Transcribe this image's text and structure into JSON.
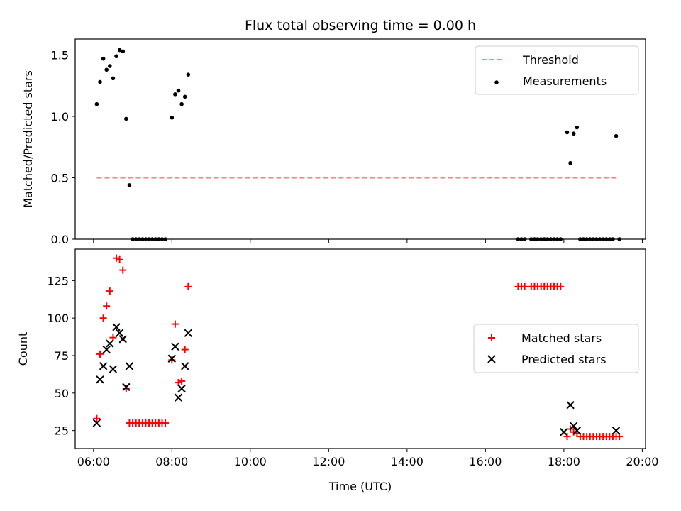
{
  "chart_data": [
    {
      "type": "scatter",
      "title": "Flux total observing time = 0.00 h",
      "xlabel": "",
      "ylabel": "Matched/Predicted stars",
      "xlim": [
        "05:32",
        "20:05"
      ],
      "ylim": [
        0,
        1.63
      ],
      "x_ticks": [
        "06:00",
        "08:00",
        "10:00",
        "12:00",
        "14:00",
        "16:00",
        "18:00",
        "20:00"
      ],
      "y_ticks": [
        {
          "value": 0.0,
          "label": "0.0"
        },
        {
          "value": 0.5,
          "label": "0.5"
        },
        {
          "value": 1.0,
          "label": "1.0"
        },
        {
          "value": 1.5,
          "label": "1.5"
        }
      ],
      "legend": {
        "placement": "upper right"
      },
      "series": [
        {
          "name": "Threshold",
          "kind": "line",
          "style": "dashed",
          "color": "#ff7f7f",
          "points": [
            {
              "x": "06:05",
              "y": 0.5
            },
            {
              "x": "19:25",
              "y": 0.5
            }
          ]
        },
        {
          "name": "Measurements",
          "kind": "scatter",
          "marker": "dot",
          "color": "#000000",
          "points": [
            {
              "x": "06:05",
              "y": 1.1
            },
            {
              "x": "06:10",
              "y": 1.28
            },
            {
              "x": "06:15",
              "y": 1.47
            },
            {
              "x": "06:20",
              "y": 1.38
            },
            {
              "x": "06:25",
              "y": 1.41
            },
            {
              "x": "06:30",
              "y": 1.31
            },
            {
              "x": "06:35",
              "y": 1.49
            },
            {
              "x": "06:40",
              "y": 1.54
            },
            {
              "x": "06:45",
              "y": 1.53
            },
            {
              "x": "06:50",
              "y": 0.98
            },
            {
              "x": "06:55",
              "y": 0.44
            },
            {
              "x": "07:00",
              "y": 0.0
            },
            {
              "x": "07:05",
              "y": 0.0
            },
            {
              "x": "07:10",
              "y": 0.0
            },
            {
              "x": "07:15",
              "y": 0.0
            },
            {
              "x": "07:20",
              "y": 0.0
            },
            {
              "x": "07:25",
              "y": 0.0
            },
            {
              "x": "07:30",
              "y": 0.0
            },
            {
              "x": "07:35",
              "y": 0.0
            },
            {
              "x": "07:40",
              "y": 0.0
            },
            {
              "x": "07:45",
              "y": 0.0
            },
            {
              "x": "07:50",
              "y": 0.0
            },
            {
              "x": "08:00",
              "y": 0.99
            },
            {
              "x": "08:05",
              "y": 1.18
            },
            {
              "x": "08:10",
              "y": 1.21
            },
            {
              "x": "08:15",
              "y": 1.1
            },
            {
              "x": "08:20",
              "y": 1.16
            },
            {
              "x": "08:25",
              "y": 1.34
            },
            {
              "x": "16:50",
              "y": 0.0
            },
            {
              "x": "16:55",
              "y": 0.0
            },
            {
              "x": "17:00",
              "y": 0.0
            },
            {
              "x": "17:10",
              "y": 0.0
            },
            {
              "x": "17:15",
              "y": 0.0
            },
            {
              "x": "17:20",
              "y": 0.0
            },
            {
              "x": "17:25",
              "y": 0.0
            },
            {
              "x": "17:30",
              "y": 0.0
            },
            {
              "x": "17:35",
              "y": 0.0
            },
            {
              "x": "17:40",
              "y": 0.0
            },
            {
              "x": "17:45",
              "y": 0.0
            },
            {
              "x": "17:50",
              "y": 0.0
            },
            {
              "x": "17:55",
              "y": 0.0
            },
            {
              "x": "18:05",
              "y": 0.87
            },
            {
              "x": "18:10",
              "y": 0.62
            },
            {
              "x": "18:15",
              "y": 0.86
            },
            {
              "x": "18:20",
              "y": 0.91
            },
            {
              "x": "18:25",
              "y": 0.0
            },
            {
              "x": "18:30",
              "y": 0.0
            },
            {
              "x": "18:35",
              "y": 0.0
            },
            {
              "x": "18:40",
              "y": 0.0
            },
            {
              "x": "18:45",
              "y": 0.0
            },
            {
              "x": "18:50",
              "y": 0.0
            },
            {
              "x": "18:55",
              "y": 0.0
            },
            {
              "x": "19:00",
              "y": 0.0
            },
            {
              "x": "19:05",
              "y": 0.0
            },
            {
              "x": "19:10",
              "y": 0.0
            },
            {
              "x": "19:15",
              "y": 0.0
            },
            {
              "x": "19:20",
              "y": 0.84
            },
            {
              "x": "19:25",
              "y": 0.0
            }
          ]
        }
      ]
    },
    {
      "type": "scatter",
      "title": "",
      "xlabel": "Time (UTC)",
      "ylabel": "Count",
      "xlim": [
        "05:32",
        "20:05"
      ],
      "ylim": [
        13,
        146
      ],
      "x_ticks": [
        "06:00",
        "08:00",
        "10:00",
        "12:00",
        "14:00",
        "16:00",
        "18:00",
        "20:00"
      ],
      "y_ticks": [
        {
          "value": 25,
          "label": "25"
        },
        {
          "value": 50,
          "label": "50"
        },
        {
          "value": 75,
          "label": "75"
        },
        {
          "value": 100,
          "label": "100"
        },
        {
          "value": 125,
          "label": "125"
        }
      ],
      "legend": {
        "placement": "center right"
      },
      "series": [
        {
          "name": "Matched stars",
          "kind": "scatter",
          "marker": "plus",
          "color": "#ff0000",
          "points": [
            {
              "x": "06:05",
              "y": 33
            },
            {
              "x": "06:10",
              "y": 76
            },
            {
              "x": "06:15",
              "y": 100
            },
            {
              "x": "06:20",
              "y": 108
            },
            {
              "x": "06:25",
              "y": 118
            },
            {
              "x": "06:30",
              "y": 87
            },
            {
              "x": "06:35",
              "y": 140
            },
            {
              "x": "06:40",
              "y": 139
            },
            {
              "x": "06:45",
              "y": 132
            },
            {
              "x": "06:50",
              "y": 53
            },
            {
              "x": "06:55",
              "y": 30
            },
            {
              "x": "07:00",
              "y": 30
            },
            {
              "x": "07:05",
              "y": 30
            },
            {
              "x": "07:10",
              "y": 30
            },
            {
              "x": "07:15",
              "y": 30
            },
            {
              "x": "07:20",
              "y": 30
            },
            {
              "x": "07:25",
              "y": 30
            },
            {
              "x": "07:30",
              "y": 30
            },
            {
              "x": "07:35",
              "y": 30
            },
            {
              "x": "07:40",
              "y": 30
            },
            {
              "x": "07:45",
              "y": 30
            },
            {
              "x": "07:50",
              "y": 30
            },
            {
              "x": "08:00",
              "y": 72
            },
            {
              "x": "08:05",
              "y": 96
            },
            {
              "x": "08:10",
              "y": 57
            },
            {
              "x": "08:15",
              "y": 58
            },
            {
              "x": "08:20",
              "y": 79
            },
            {
              "x": "08:25",
              "y": 121
            },
            {
              "x": "16:50",
              "y": 121
            },
            {
              "x": "16:55",
              "y": 121
            },
            {
              "x": "17:00",
              "y": 121
            },
            {
              "x": "17:10",
              "y": 121
            },
            {
              "x": "17:15",
              "y": 121
            },
            {
              "x": "17:20",
              "y": 121
            },
            {
              "x": "17:25",
              "y": 121
            },
            {
              "x": "17:30",
              "y": 121
            },
            {
              "x": "17:35",
              "y": 121
            },
            {
              "x": "17:40",
              "y": 121
            },
            {
              "x": "17:45",
              "y": 121
            },
            {
              "x": "17:50",
              "y": 121
            },
            {
              "x": "17:55",
              "y": 121
            },
            {
              "x": "18:05",
              "y": 21
            },
            {
              "x": "18:10",
              "y": 26
            },
            {
              "x": "18:15",
              "y": 24
            },
            {
              "x": "18:20",
              "y": 23
            },
            {
              "x": "18:25",
              "y": 21
            },
            {
              "x": "18:30",
              "y": 21
            },
            {
              "x": "18:35",
              "y": 21
            },
            {
              "x": "18:40",
              "y": 21
            },
            {
              "x": "18:45",
              "y": 21
            },
            {
              "x": "18:50",
              "y": 21
            },
            {
              "x": "18:55",
              "y": 21
            },
            {
              "x": "19:00",
              "y": 21
            },
            {
              "x": "19:05",
              "y": 21
            },
            {
              "x": "19:10",
              "y": 21
            },
            {
              "x": "19:15",
              "y": 21
            },
            {
              "x": "19:20",
              "y": 21
            },
            {
              "x": "19:25",
              "y": 21
            }
          ]
        },
        {
          "name": "Predicted stars",
          "kind": "scatter",
          "marker": "x",
          "color": "#000000",
          "points": [
            {
              "x": "06:05",
              "y": 30
            },
            {
              "x": "06:10",
              "y": 59
            },
            {
              "x": "06:15",
              "y": 68
            },
            {
              "x": "06:20",
              "y": 79
            },
            {
              "x": "06:25",
              "y": 83
            },
            {
              "x": "06:30",
              "y": 66
            },
            {
              "x": "06:35",
              "y": 94
            },
            {
              "x": "06:40",
              "y": 90
            },
            {
              "x": "06:45",
              "y": 86
            },
            {
              "x": "06:50",
              "y": 54
            },
            {
              "x": "06:55",
              "y": 68
            },
            {
              "x": "08:00",
              "y": 73
            },
            {
              "x": "08:05",
              "y": 81
            },
            {
              "x": "08:10",
              "y": 47
            },
            {
              "x": "08:15",
              "y": 53
            },
            {
              "x": "08:20",
              "y": 68
            },
            {
              "x": "08:25",
              "y": 90
            },
            {
              "x": "18:00",
              "y": 24
            },
            {
              "x": "18:10",
              "y": 42
            },
            {
              "x": "18:15",
              "y": 28
            },
            {
              "x": "18:20",
              "y": 25
            },
            {
              "x": "19:20",
              "y": 25
            }
          ]
        }
      ]
    }
  ]
}
